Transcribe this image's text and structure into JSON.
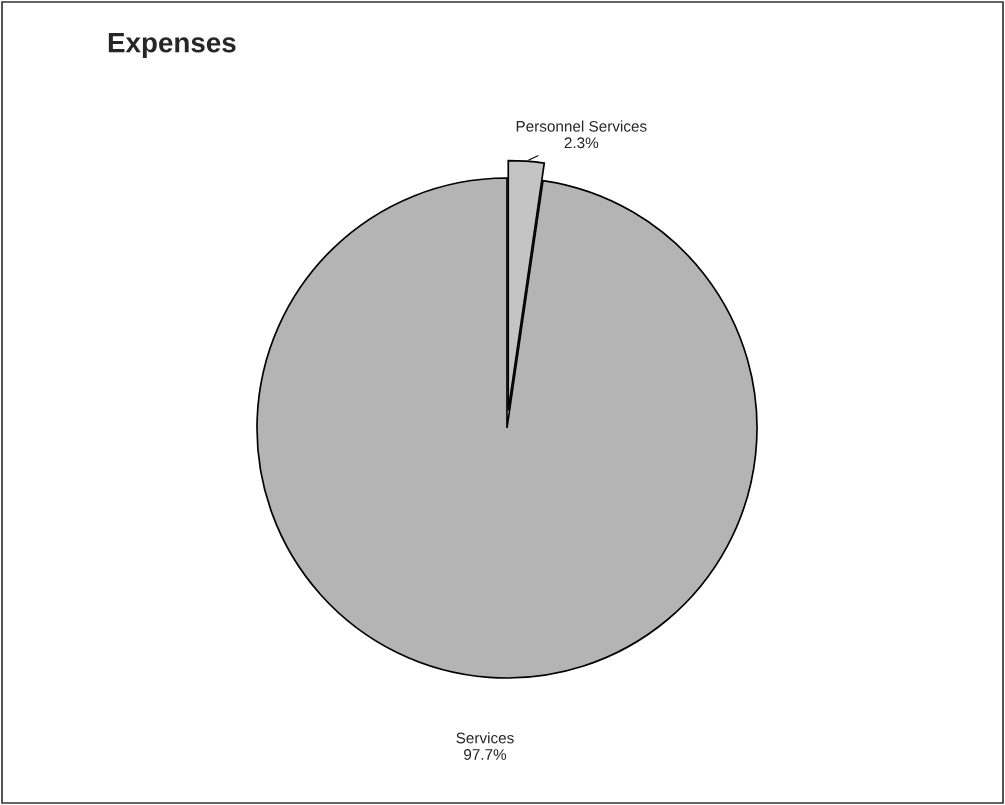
{
  "chart_data": {
    "type": "pie",
    "title": "Expenses",
    "categories": [
      "Personnel Services",
      "Services"
    ],
    "values": [
      2.3,
      97.7
    ],
    "value_labels": [
      "2.3%",
      "97.7%"
    ],
    "colors": [
      "#c4c4c4",
      "#b4b4b4"
    ]
  }
}
